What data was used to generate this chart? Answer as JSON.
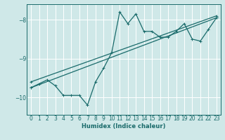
{
  "xlabel": "Humidex (Indice chaleur)",
  "ylabel": "",
  "bg_color": "#cfe8e8",
  "line_color": "#1a6b6b",
  "grid_color": "#ffffff",
  "xlim": [
    -0.5,
    23.5
  ],
  "ylim": [
    -10.45,
    -7.6
  ],
  "yticks": [
    -10,
    -9,
    -8
  ],
  "xticks": [
    0,
    1,
    2,
    3,
    4,
    5,
    6,
    7,
    8,
    9,
    10,
    11,
    12,
    13,
    14,
    15,
    16,
    17,
    18,
    19,
    20,
    21,
    22,
    23
  ],
  "series": [
    {
      "x": [
        0,
        1,
        2,
        3,
        4,
        5,
        6,
        7,
        8,
        9,
        10,
        11,
        12,
        13,
        14,
        15,
        16,
        17,
        18,
        19,
        20,
        21,
        22,
        23
      ],
      "y": [
        -9.75,
        -9.65,
        -9.55,
        -9.7,
        -9.95,
        -9.95,
        -9.95,
        -10.2,
        -9.6,
        -9.25,
        -8.85,
        -7.8,
        -8.1,
        -7.85,
        -8.3,
        -8.3,
        -8.45,
        -8.45,
        -8.3,
        -8.1,
        -8.5,
        -8.55,
        -8.25,
        -7.95
      ]
    },
    {
      "x": [
        0,
        23
      ],
      "y": [
        -9.75,
        -7.95
      ]
    },
    {
      "x": [
        0,
        23
      ],
      "y": [
        -9.6,
        -7.9
      ]
    }
  ],
  "marker": "+",
  "markersize": 3,
  "linewidth": 0.9,
  "tick_fontsize": 5.5,
  "xlabel_fontsize": 6.0
}
